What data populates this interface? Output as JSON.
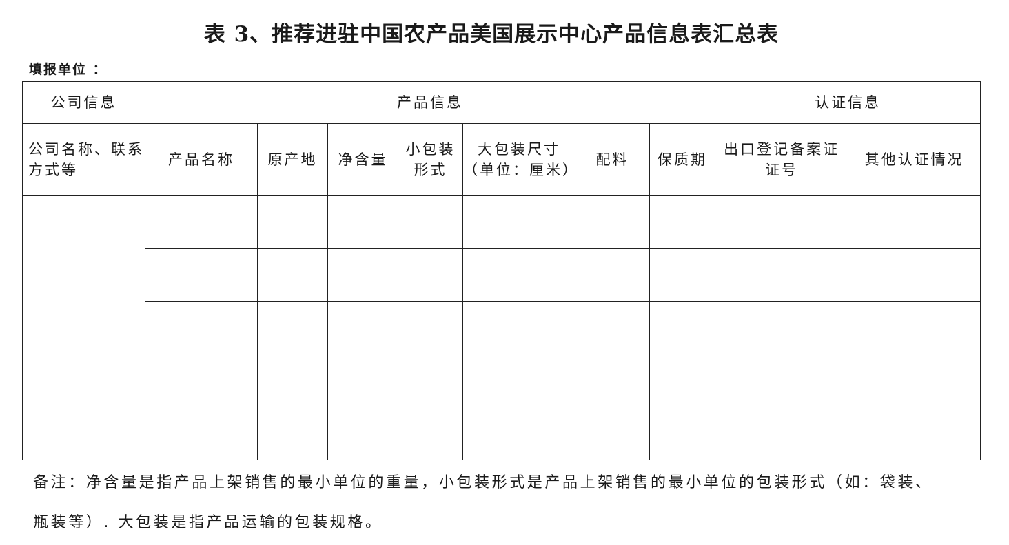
{
  "title": "表 3、推荐进驻中国农产品美国展示中心产品信息表汇总表",
  "fill_unit_label": "填报单位 ：",
  "table": {
    "group_headers": [
      "公司信息",
      "产品信息",
      "认证信息"
    ],
    "columns": [
      [
        "公司名称、联系",
        "方式等"
      ],
      [
        "产品名称"
      ],
      [
        "原产地"
      ],
      [
        "净含量"
      ],
      [
        "小包装",
        "形式"
      ],
      [
        "大包装尺寸",
        "（单位：厘米）"
      ],
      [
        "配料"
      ],
      [
        "保质期"
      ],
      [
        "出口登记备案证",
        "证号"
      ],
      [
        "其他认证情况"
      ]
    ],
    "company_group_row_counts": [
      3,
      3,
      4
    ]
  },
  "notes": {
    "line1": "备注：净含量是指产品上架销售的最小单位的重量，小包装形式是产品上架销售的最小单位的包装形式（如：袋装、",
    "line2": "瓶装等）. 大包装是指产品运输的包装规格。"
  }
}
